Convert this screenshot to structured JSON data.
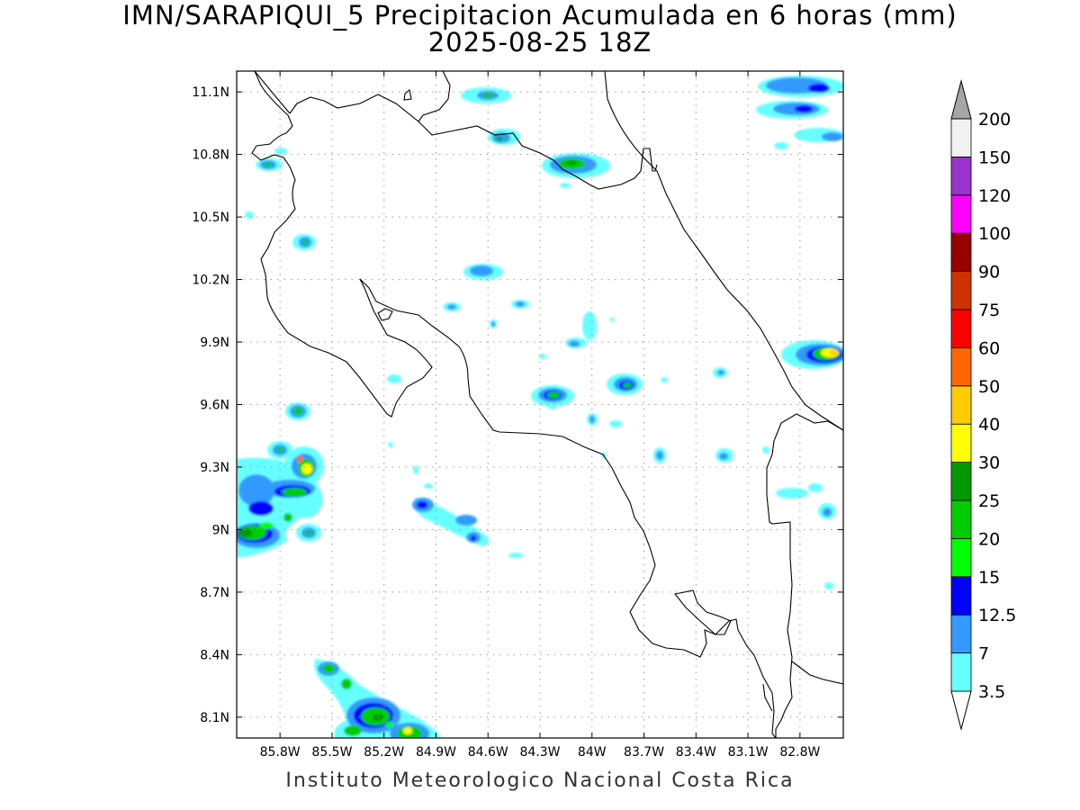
{
  "title": {
    "line1": "IMN/SARAPIQUI_5 Precipitacion Acumulada en 6 horas (mm)",
    "line2": "2025-08-25 18Z"
  },
  "footer": "Instituto Meteorologico Nacional Costa Rica",
  "map": {
    "lon_range": [
      -86.05,
      -82.55
    ],
    "lat_range": [
      8.0,
      11.2
    ],
    "lon_ticks": [
      {
        "value": -85.8,
        "label": "85.8W"
      },
      {
        "value": -85.5,
        "label": "85.5W"
      },
      {
        "value": -85.2,
        "label": "85.2W"
      },
      {
        "value": -84.9,
        "label": "84.9W"
      },
      {
        "value": -84.6,
        "label": "84.6W"
      },
      {
        "value": -84.3,
        "label": "84.3W"
      },
      {
        "value": -84.0,
        "label": "84W"
      },
      {
        "value": -83.7,
        "label": "83.7W"
      },
      {
        "value": -83.4,
        "label": "83.4W"
      },
      {
        "value": -83.1,
        "label": "83.1W"
      },
      {
        "value": -82.8,
        "label": "82.8W"
      }
    ],
    "lat_ticks": [
      {
        "value": 11.1,
        "label": "11.1N"
      },
      {
        "value": 10.8,
        "label": "10.8N"
      },
      {
        "value": 10.5,
        "label": "10.5N"
      },
      {
        "value": 10.2,
        "label": "10.2N"
      },
      {
        "value": 9.9,
        "label": "9.9N"
      },
      {
        "value": 9.6,
        "label": "9.6N"
      },
      {
        "value": 9.3,
        "label": "9.3N"
      },
      {
        "value": 9.0,
        "label": "9N"
      },
      {
        "value": 8.7,
        "label": "8.7N"
      },
      {
        "value": 8.4,
        "label": "8.4N"
      },
      {
        "value": 8.1,
        "label": "8.1N"
      }
    ],
    "grid": true
  },
  "colorbar": {
    "levels": [
      {
        "value": "3.5",
        "color": "#66ffff"
      },
      {
        "value": "7",
        "color": "#3399ff"
      },
      {
        "value": "12.5",
        "color": "#0000ff"
      },
      {
        "value": "15",
        "color": "#00ff00"
      },
      {
        "value": "20",
        "color": "#00cc00"
      },
      {
        "value": "25",
        "color": "#009900"
      },
      {
        "value": "30",
        "color": "#ffff00"
      },
      {
        "value": "40",
        "color": "#ffcc00"
      },
      {
        "value": "50",
        "color": "#ff6600"
      },
      {
        "value": "60",
        "color": "#ff0000"
      },
      {
        "value": "75",
        "color": "#cc3300"
      },
      {
        "value": "90",
        "color": "#990000"
      },
      {
        "value": "100",
        "color": "#ff00ff"
      },
      {
        "value": "120",
        "color": "#9933cc"
      },
      {
        "value": "150",
        "color": "#f2f2f2"
      },
      {
        "value": "200",
        "color": "#a6a6a6"
      }
    ]
  },
  "precip_cells": [
    {
      "lon": -84.55,
      "lat": 11.16,
      "level": 12.5
    },
    {
      "lon": -82.75,
      "lat": 11.18,
      "level": 12.5
    },
    {
      "lon": -82.85,
      "lat": 11.1,
      "level": 12.5
    },
    {
      "lon": -82.65,
      "lat": 10.98,
      "level": 7
    },
    {
      "lon": -84.45,
      "lat": 10.97,
      "level": 15
    },
    {
      "lon": -83.95,
      "lat": 10.85,
      "level": 20
    },
    {
      "lon": -85.8,
      "lat": 10.84,
      "level": 12.5
    },
    {
      "lon": -85.57,
      "lat": 10.45,
      "level": 12.5
    },
    {
      "lon": -84.58,
      "lat": 10.3,
      "level": 7
    },
    {
      "lon": -84.0,
      "lat": 9.95,
      "level": 7
    },
    {
      "lon": -82.62,
      "lat": 9.91,
      "level": 40
    },
    {
      "lon": -84.2,
      "lat": 9.7,
      "level": 20
    },
    {
      "lon": -83.74,
      "lat": 9.74,
      "level": 20
    },
    {
      "lon": -85.62,
      "lat": 9.61,
      "level": 20
    },
    {
      "lon": -84.02,
      "lat": 9.57,
      "level": 12.5
    },
    {
      "lon": -85.5,
      "lat": 9.39,
      "level": 40
    },
    {
      "lon": -85.58,
      "lat": 9.22,
      "level": 20
    },
    {
      "lon": -85.82,
      "lat": 9.25,
      "level": 12.5
    },
    {
      "lon": -85.95,
      "lat": 9.03,
      "level": 25
    },
    {
      "lon": -85.47,
      "lat": 9.02,
      "level": 20
    },
    {
      "lon": -84.92,
      "lat": 9.15,
      "level": 12.5
    },
    {
      "lon": -84.62,
      "lat": 8.99,
      "level": 12.5
    },
    {
      "lon": -83.55,
      "lat": 9.39,
      "level": 12.5
    },
    {
      "lon": -82.72,
      "lat": 9.12,
      "level": 12.5
    },
    {
      "lon": -85.45,
      "lat": 8.35,
      "level": 20
    },
    {
      "lon": -85.18,
      "lat": 8.15,
      "level": 20
    },
    {
      "lon": -84.98,
      "lat": 8.06,
      "level": 30
    }
  ]
}
